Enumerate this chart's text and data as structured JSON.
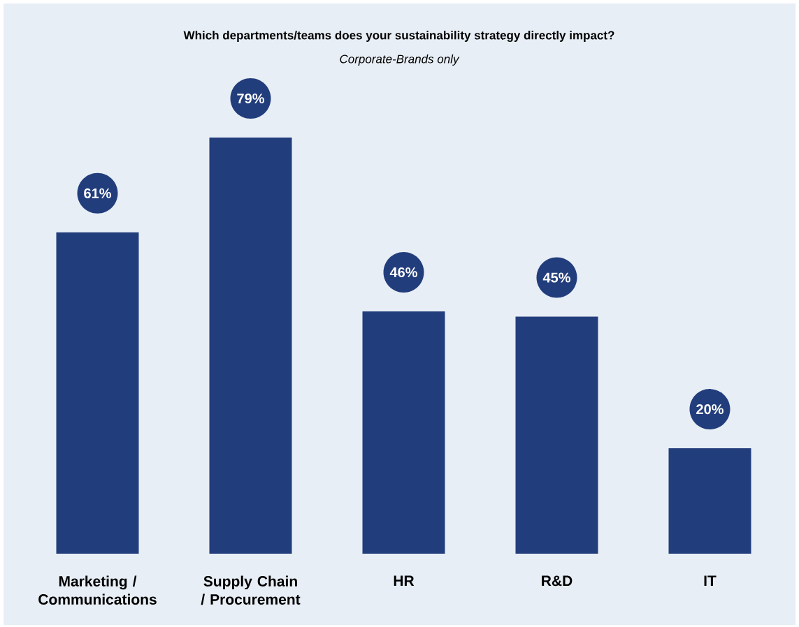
{
  "chart_data": {
    "type": "bar",
    "title": "Which departments/teams does your sustainability strategy directly impact?",
    "subtitle": "Corporate-Brands only",
    "categories": [
      "Marketing / Communications",
      "Supply Chain / Procurement",
      "HR",
      "R&D",
      "IT"
    ],
    "values": [
      61,
      79,
      46,
      45,
      20
    ],
    "value_labels": [
      "61%",
      "79%",
      "46%",
      "45%",
      "20%"
    ],
    "color": "#223d7c"
  }
}
